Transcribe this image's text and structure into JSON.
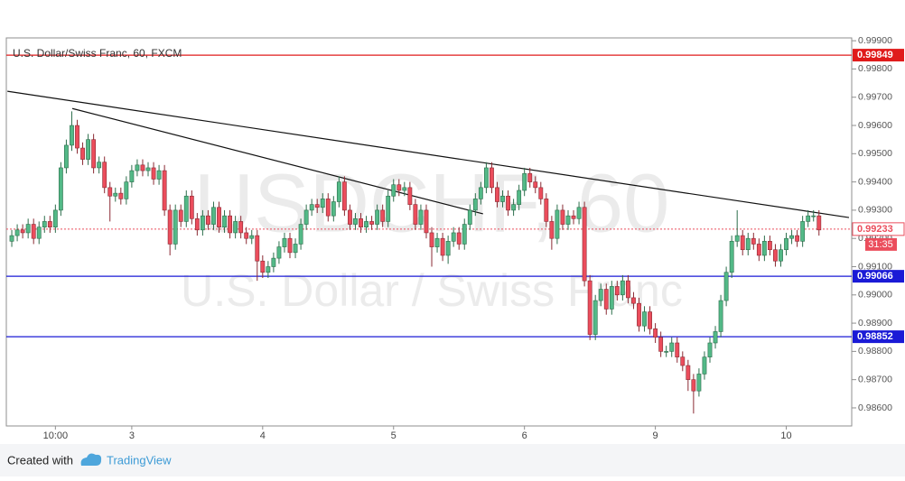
{
  "chart_data": {
    "type": "candlestick",
    "title": "U.S. Dollar/Swiss Franc, 60, FXCM",
    "watermark": [
      "USDCHF, 60",
      "U.S. Dollar / Swiss Franc"
    ],
    "xlim": [
      1,
      156
    ],
    "ylim": [
      0.98536,
      0.9991
    ],
    "xticks": [
      {
        "value": 10,
        "label": "10:00"
      },
      {
        "value": 24,
        "label": "3"
      },
      {
        "value": 48,
        "label": "4"
      },
      {
        "value": 72,
        "label": "5"
      },
      {
        "value": 96,
        "label": "6"
      },
      {
        "value": 120,
        "label": "9"
      },
      {
        "value": 144,
        "label": "10"
      }
    ],
    "yticks": [
      {
        "value": 0.986,
        "label": "0.98600"
      },
      {
        "value": 0.987,
        "label": "0.98700"
      },
      {
        "value": 0.988,
        "label": "0.98800"
      },
      {
        "value": 0.989,
        "label": "0.98900"
      },
      {
        "value": 0.99,
        "label": "0.99000"
      },
      {
        "value": 0.991,
        "label": "0.99100"
      },
      {
        "value": 0.992,
        "label": "0.99200"
      },
      {
        "value": 0.993,
        "label": "0.99300"
      },
      {
        "value": 0.994,
        "label": "0.99400"
      },
      {
        "value": 0.995,
        "label": "0.99500"
      },
      {
        "value": 0.996,
        "label": "0.99600"
      },
      {
        "value": 0.997,
        "label": "0.99700"
      },
      {
        "value": 0.998,
        "label": "0.99800"
      },
      {
        "value": 0.999,
        "label": "0.99900"
      }
    ],
    "up_color": "#53b987",
    "down_color": "#eb4d5c",
    "x": [
      2,
      3,
      4,
      5,
      6,
      7,
      8,
      9,
      10,
      11,
      12,
      13,
      14,
      15,
      16,
      17,
      18,
      19,
      20,
      21,
      22,
      23,
      24,
      25,
      26,
      27,
      28,
      29,
      30,
      31,
      32,
      33,
      34,
      35,
      36,
      37,
      38,
      39,
      40,
      41,
      42,
      43,
      44,
      45,
      46,
      47,
      48,
      49,
      50,
      51,
      52,
      53,
      54,
      55,
      56,
      57,
      58,
      59,
      60,
      61,
      62,
      63,
      64,
      65,
      66,
      67,
      68,
      69,
      70,
      71,
      72,
      73,
      74,
      75,
      76,
      77,
      78,
      79,
      80,
      81,
      82,
      83,
      84,
      85,
      86,
      87,
      88,
      89,
      90,
      91,
      92,
      93,
      94,
      95,
      96,
      97,
      98,
      99,
      100,
      101,
      102,
      103,
      104,
      105,
      106,
      107,
      108,
      109,
      110,
      111,
      112,
      113,
      114,
      115,
      116,
      117,
      118,
      119,
      120,
      121,
      122,
      123,
      124,
      125,
      126,
      127,
      128,
      129,
      130,
      131,
      132,
      133,
      134,
      135,
      136,
      137,
      138,
      139,
      140,
      141,
      142,
      143,
      144,
      145,
      146,
      147,
      148,
      149,
      150
    ],
    "open": [
      0.9919,
      0.9921,
      0.9923,
      0.9922,
      0.9925,
      0.992,
      0.9924,
      0.9926,
      0.9924,
      0.993,
      0.9945,
      0.9953,
      0.996,
      0.9952,
      0.9948,
      0.9955,
      0.9945,
      0.9947,
      0.9938,
      0.9935,
      0.9936,
      0.9934,
      0.994,
      0.9944,
      0.9946,
      0.9944,
      0.9945,
      0.9941,
      0.9944,
      0.993,
      0.9918,
      0.993,
      0.9926,
      0.9935,
      0.9927,
      0.9923,
      0.9928,
      0.9925,
      0.9931,
      0.9924,
      0.9928,
      0.9922,
      0.9926,
      0.9922,
      0.992,
      0.9921,
      0.9912,
      0.9908,
      0.991,
      0.9913,
      0.9917,
      0.992,
      0.9915,
      0.9918,
      0.9925,
      0.993,
      0.9932,
      0.9931,
      0.9934,
      0.9928,
      0.9933,
      0.994,
      0.993,
      0.9925,
      0.9927,
      0.9924,
      0.9926,
      0.9925,
      0.993,
      0.9926,
      0.9935,
      0.9939,
      0.9937,
      0.9938,
      0.9932,
      0.9925,
      0.993,
      0.9922,
      0.9917,
      0.992,
      0.9914,
      0.9919,
      0.9922,
      0.9918,
      0.9925,
      0.993,
      0.9934,
      0.9938,
      0.9945,
      0.9938,
      0.9933,
      0.9935,
      0.993,
      0.9932,
      0.9937,
      0.9943,
      0.994,
      0.9938,
      0.9934,
      0.9926,
      0.992,
      0.993,
      0.9925,
      0.9928,
      0.9927,
      0.9931,
      0.9905,
      0.9886,
      0.9898,
      0.9902,
      0.9895,
      0.9903,
      0.99,
      0.9905,
      0.9899,
      0.9897,
      0.9889,
      0.9894,
      0.9888,
      0.9885,
      0.988,
      0.988,
      0.9883,
      0.9878,
      0.9875,
      0.987,
      0.9866,
      0.9872,
      0.9878,
      0.9883,
      0.9887,
      0.9898,
      0.9908,
      0.9919,
      0.9921,
      0.9916,
      0.992,
      0.9918,
      0.9914,
      0.9919,
      0.9916,
      0.9912,
      0.9916,
      0.992,
      0.9921,
      0.9919,
      0.9926,
      0.9928,
      0.9928
    ],
    "high": [
      0.9923,
      0.9925,
      0.9925,
      0.9927,
      0.9927,
      0.9926,
      0.9928,
      0.9928,
      0.9932,
      0.9947,
      0.9955,
      0.9965,
      0.9962,
      0.9954,
      0.9957,
      0.9957,
      0.9949,
      0.9949,
      0.994,
      0.9938,
      0.9938,
      0.9942,
      0.9946,
      0.9948,
      0.9948,
      0.9947,
      0.9947,
      0.9946,
      0.9946,
      0.9932,
      0.9932,
      0.9932,
      0.9937,
      0.9937,
      0.9929,
      0.993,
      0.993,
      0.9933,
      0.9933,
      0.993,
      0.993,
      0.9928,
      0.9928,
      0.9924,
      0.9923,
      0.9923,
      0.9914,
      0.9912,
      0.9915,
      0.9919,
      0.9922,
      0.9922,
      0.992,
      0.9927,
      0.9932,
      0.9934,
      0.9934,
      0.9936,
      0.9936,
      0.9935,
      0.9942,
      0.9942,
      0.9932,
      0.9929,
      0.9929,
      0.9928,
      0.9928,
      0.9932,
      0.9932,
      0.9937,
      0.9941,
      0.9941,
      0.994,
      0.994,
      0.9934,
      0.9932,
      0.9932,
      0.9924,
      0.9922,
      0.9922,
      0.9921,
      0.9924,
      0.9924,
      0.9927,
      0.9932,
      0.9936,
      0.994,
      0.9947,
      0.9947,
      0.994,
      0.9937,
      0.9937,
      0.9934,
      0.9939,
      0.9945,
      0.9945,
      0.9942,
      0.994,
      0.9936,
      0.9928,
      0.9932,
      0.9932,
      0.993,
      0.993,
      0.9933,
      0.9933,
      0.9907,
      0.99,
      0.9904,
      0.9904,
      0.9905,
      0.9905,
      0.9907,
      0.9907,
      0.9901,
      0.9899,
      0.9896,
      0.9896,
      0.989,
      0.9887,
      0.9882,
      0.9885,
      0.9885,
      0.988,
      0.9877,
      0.9872,
      0.9874,
      0.988,
      0.9885,
      0.9889,
      0.99,
      0.991,
      0.9921,
      0.993,
      0.9923,
      0.9922,
      0.9922,
      0.992,
      0.9921,
      0.9921,
      0.9918,
      0.9918,
      0.9922,
      0.9923,
      0.9923,
      0.9928,
      0.993,
      0.993,
      0.993
    ],
    "low": [
      0.9917,
      0.9919,
      0.992,
      0.992,
      0.9918,
      0.9918,
      0.9922,
      0.9922,
      0.9922,
      0.9928,
      0.9943,
      0.9951,
      0.995,
      0.9946,
      0.9946,
      0.9943,
      0.9943,
      0.9936,
      0.9926,
      0.9933,
      0.9932,
      0.9932,
      0.9938,
      0.9942,
      0.9942,
      0.9942,
      0.9939,
      0.9939,
      0.9928,
      0.9914,
      0.9916,
      0.9924,
      0.9924,
      0.9925,
      0.9921,
      0.9921,
      0.9923,
      0.9923,
      0.9922,
      0.9922,
      0.992,
      0.992,
      0.992,
      0.9918,
      0.9918,
      0.9905,
      0.9906,
      0.9906,
      0.9908,
      0.9911,
      0.9915,
      0.9913,
      0.9913,
      0.9916,
      0.9923,
      0.9928,
      0.9929,
      0.9929,
      0.9926,
      0.9926,
      0.9931,
      0.9928,
      0.9923,
      0.9923,
      0.9922,
      0.9922,
      0.9923,
      0.9923,
      0.9924,
      0.9924,
      0.9933,
      0.9935,
      0.9935,
      0.993,
      0.9923,
      0.9923,
      0.992,
      0.991,
      0.9915,
      0.9912,
      0.9911,
      0.9917,
      0.9916,
      0.9916,
      0.9923,
      0.9928,
      0.9932,
      0.9936,
      0.9936,
      0.9931,
      0.9931,
      0.9928,
      0.9928,
      0.993,
      0.9935,
      0.9938,
      0.9936,
      0.9932,
      0.9924,
      0.9916,
      0.9918,
      0.9923,
      0.9923,
      0.9925,
      0.9925,
      0.9903,
      0.9884,
      0.9884,
      0.9896,
      0.9893,
      0.9893,
      0.9898,
      0.9898,
      0.9897,
      0.9895,
      0.9887,
      0.9887,
      0.9886,
      0.9883,
      0.9878,
      0.9878,
      0.9878,
      0.9876,
      0.9873,
      0.9866,
      0.9858,
      0.9864,
      0.987,
      0.9876,
      0.9881,
      0.9885,
      0.9896,
      0.9906,
      0.9917,
      0.9914,
      0.9914,
      0.9916,
      0.9912,
      0.9912,
      0.9914,
      0.991,
      0.991,
      0.9914,
      0.9918,
      0.9917,
      0.9917,
      0.9924,
      0.9926,
      0.9921
    ],
    "close": [
      0.9921,
      0.9923,
      0.9922,
      0.9925,
      0.992,
      0.9924,
      0.9926,
      0.9924,
      0.993,
      0.9945,
      0.9953,
      0.996,
      0.9952,
      0.9948,
      0.9955,
      0.9945,
      0.9947,
      0.9938,
      0.9935,
      0.9936,
      0.9934,
      0.994,
      0.9944,
      0.9946,
      0.9944,
      0.9945,
      0.9941,
      0.9944,
      0.993,
      0.9918,
      0.993,
      0.9926,
      0.9935,
      0.9927,
      0.9923,
      0.9928,
      0.9925,
      0.9931,
      0.9924,
      0.9928,
      0.9922,
      0.9926,
      0.9922,
      0.992,
      0.9921,
      0.9912,
      0.9908,
      0.991,
      0.9913,
      0.9917,
      0.992,
      0.9915,
      0.9918,
      0.9925,
      0.993,
      0.9932,
      0.9931,
      0.9934,
      0.9928,
      0.9933,
      0.994,
      0.993,
      0.9925,
      0.9927,
      0.9924,
      0.9926,
      0.9925,
      0.993,
      0.9926,
      0.9935,
      0.9939,
      0.9937,
      0.9938,
      0.9932,
      0.9925,
      0.993,
      0.9922,
      0.9917,
      0.992,
      0.9914,
      0.9919,
      0.9922,
      0.9918,
      0.9925,
      0.993,
      0.9934,
      0.9938,
      0.9945,
      0.9938,
      0.9933,
      0.9935,
      0.993,
      0.9932,
      0.9937,
      0.9943,
      0.994,
      0.9938,
      0.9934,
      0.9926,
      0.992,
      0.993,
      0.9925,
      0.9928,
      0.9927,
      0.9931,
      0.9905,
      0.9886,
      0.9898,
      0.9902,
      0.9895,
      0.9903,
      0.99,
      0.9905,
      0.9899,
      0.9897,
      0.9889,
      0.9894,
      0.9888,
      0.9885,
      0.988,
      0.988,
      0.9883,
      0.9878,
      0.9875,
      0.987,
      0.9866,
      0.9872,
      0.9878,
      0.9883,
      0.9887,
      0.9898,
      0.9908,
      0.9919,
      0.9921,
      0.9916,
      0.992,
      0.9918,
      0.9914,
      0.9919,
      0.9916,
      0.9912,
      0.9916,
      0.992,
      0.9921,
      0.9919,
      0.9926,
      0.9928,
      0.9928,
      0.9923
    ],
    "hlines": [
      {
        "value": 0.99849,
        "label": "0.99849",
        "color": "#e01b1b"
      },
      {
        "value": 0.99066,
        "label": "0.99066",
        "color": "#1a1ad6"
      },
      {
        "value": 0.98852,
        "label": "0.98852",
        "color": "#1a1ad6"
      }
    ],
    "current_price": {
      "value": 0.99233,
      "label": "0.99233",
      "countdown": "31:35",
      "color": "#eb4d5c"
    },
    "trendlines": [
      {
        "x": [
          1.2,
          155.5
        ],
        "y": [
          0.99721,
          0.99274
        ]
      },
      {
        "x": [
          13.1,
          88.4
        ],
        "y": [
          0.9966,
          0.99287
        ]
      }
    ]
  },
  "footer": {
    "created_with": "Created with",
    "brand": "TradingView"
  }
}
